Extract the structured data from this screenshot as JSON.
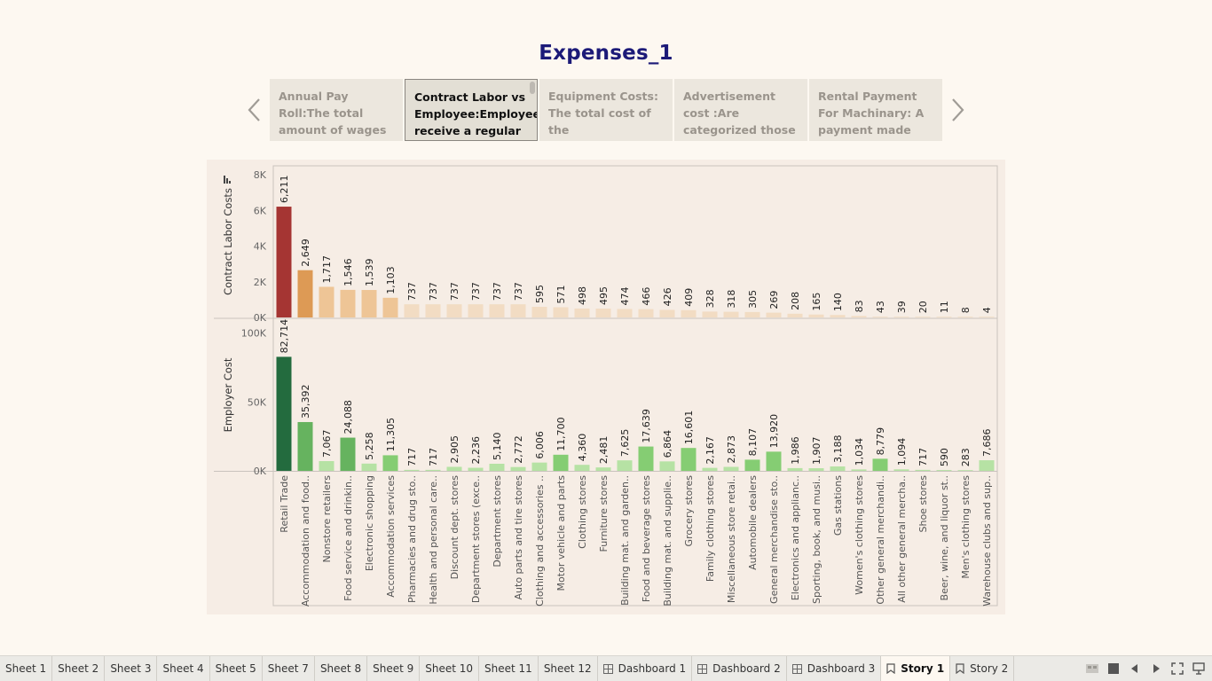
{
  "story": {
    "title": "Expenses_1",
    "points": [
      {
        "text": "Annual Pay Roll:The total amount of wages paid by an",
        "active": false
      },
      {
        "text": "Contract Labor vs Employee:Employee receive a regular",
        "active": true
      },
      {
        "text": "Equipment Costs: The total cost of the",
        "active": false
      },
      {
        "text": "Advertisement cost :Are categorized those expensees",
        "active": false
      },
      {
        "text": "Rental Payment For Machinary: A payment made",
        "active": false
      }
    ]
  },
  "chart_data": {
    "type": "bar",
    "categories": [
      "Retail Trade",
      "Accommodation and food..",
      "Nonstore retailers",
      "Food service and drinkin..",
      "Electronic shopping",
      "Accommodation services",
      "Pharmacies and drug sto..",
      "Health and personal care..",
      "Discount dept. stores",
      "Department stores (exce..",
      "Department stores",
      "Auto parts and tire stores",
      "Clothing and accessories ..",
      "Motor vehicle and parts",
      "Clothing stores",
      "Furniture stores",
      "Building mat. and garden..",
      "Food and beverage stores",
      "Building mat. and supplie..",
      "Grocery stores",
      "Family clothing stores",
      "Miscellaneous store retai..",
      "Automobile dealers",
      "General merchandise sto..",
      "Electronics and applianc..",
      "Sporting, book, and musi..",
      "Gas stations",
      "Women's clothing stores",
      "Other general merchandi..",
      "All other general mercha..",
      "Shoe stores",
      "Beer, wine, and liquor st..",
      "Men's clothing stores",
      "Warehouse clubs and sup.."
    ],
    "panes": [
      {
        "name": "Contract Labor Costs",
        "ylabel": "Contract Labor Costs",
        "ylim": [
          0,
          8500
        ],
        "ticks": [
          0,
          2000,
          4000,
          6000,
          8000
        ],
        "tick_labels": [
          "0K",
          "2K",
          "4K",
          "6K",
          "8K"
        ],
        "values": [
          6211,
          2649,
          1717,
          1546,
          1539,
          1103,
          737,
          737,
          737,
          737,
          737,
          737,
          595,
          571,
          498,
          495,
          474,
          466,
          426,
          409,
          328,
          318,
          305,
          269,
          208,
          165,
          140,
          83,
          43,
          39,
          20,
          11,
          8,
          4
        ],
        "labels": [
          "6,211",
          "2,649",
          "1,717",
          "1,546",
          "1,539",
          "1,103",
          "737",
          "737",
          "737",
          "737",
          "737",
          "737",
          "595",
          "571",
          "498",
          "495",
          "474",
          "466",
          "426",
          "409",
          "328",
          "318",
          "305",
          "269",
          "208",
          "165",
          "140",
          "83",
          "43",
          "39",
          "20",
          "11",
          "8",
          "4"
        ]
      },
      {
        "name": "Employer Cost",
        "ylabel": "Employer Cost",
        "ylim": [
          0,
          110000
        ],
        "ticks": [
          0,
          50000,
          100000
        ],
        "tick_labels": [
          "0K",
          "50K",
          "100K"
        ],
        "values": [
          82714,
          35392,
          7067,
          24088,
          5258,
          11305,
          717,
          717,
          2905,
          2236,
          5140,
          2772,
          6006,
          11700,
          4360,
          2481,
          7625,
          17639,
          6864,
          16601,
          2167,
          2873,
          8107,
          13920,
          1986,
          1907,
          3188,
          1034,
          8779,
          1094,
          717,
          590,
          283,
          7686
        ],
        "labels": [
          "82,714",
          "35,392",
          "7,067",
          "24,088",
          "5,258",
          "11,305",
          "717",
          "717",
          "2,905",
          "2,236",
          "5,140",
          "2,772",
          "6,006",
          "11,700",
          "4,360",
          "2,481",
          "7,625",
          "17,639",
          "6,864",
          "16,601",
          "2,167",
          "2,873",
          "8,107",
          "13,920",
          "1,986",
          "1,907",
          "3,188",
          "1,034",
          "8,779",
          "1,094",
          "717",
          "590",
          "283",
          "7,686"
        ]
      }
    ],
    "colors": {
      "contract_low": "#f2dcc3",
      "contract_mid": "#eec596",
      "contract_orange": "#dd9a55",
      "contract_high": "#a53533",
      "employer_low": "#b6e2a4",
      "employer_mid": "#85cd73",
      "employer_dark": "#66b35f",
      "employer_high": "#236b3e",
      "grid": "#d7cfc8",
      "axis": "#c9c3bd"
    }
  },
  "tabs": [
    {
      "label": "Sheet 1",
      "kind": "sheet",
      "active": false
    },
    {
      "label": "Sheet 2",
      "kind": "sheet",
      "active": false
    },
    {
      "label": "Sheet 3",
      "kind": "sheet",
      "active": false
    },
    {
      "label": "Sheet 4",
      "kind": "sheet",
      "active": false
    },
    {
      "label": "Sheet 5",
      "kind": "sheet",
      "active": false
    },
    {
      "label": "Sheet 7",
      "kind": "sheet",
      "active": false
    },
    {
      "label": "Sheet 8",
      "kind": "sheet",
      "active": false
    },
    {
      "label": "Sheet 9",
      "kind": "sheet",
      "active": false
    },
    {
      "label": "Sheet 10",
      "kind": "sheet",
      "active": false
    },
    {
      "label": "Sheet 11",
      "kind": "sheet",
      "active": false
    },
    {
      "label": "Sheet 12",
      "kind": "sheet",
      "active": false
    },
    {
      "label": "Dashboard 1",
      "kind": "dashboard",
      "active": false
    },
    {
      "label": "Dashboard 2",
      "kind": "dashboard",
      "active": false
    },
    {
      "label": "Dashboard 3",
      "kind": "dashboard",
      "active": false
    },
    {
      "label": "Story 1",
      "kind": "story",
      "active": true
    },
    {
      "label": "Story 2",
      "kind": "story",
      "active": false
    }
  ],
  "controls": [
    "sheet-sorter-icon",
    "filmstrip-icon",
    "prev-sheet-icon",
    "next-sheet-icon",
    "fit-icon",
    "presentation-icon"
  ]
}
